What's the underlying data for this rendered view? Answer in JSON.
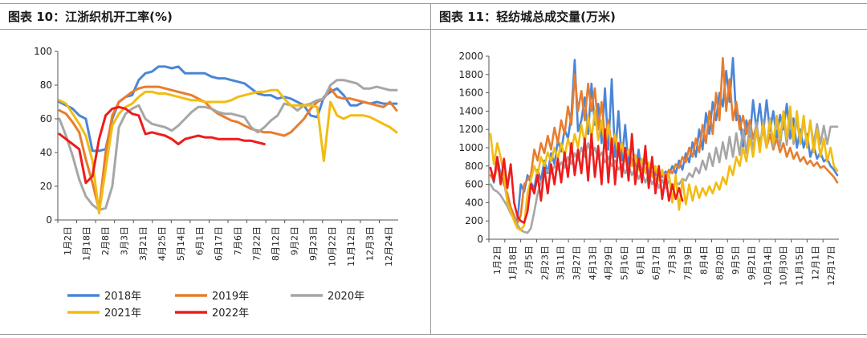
{
  "colors": {
    "s2018": "#4a86d8",
    "s2019": "#e77d2e",
    "s2020": "#a6a6a6",
    "s2021": "#f2bc12",
    "s2022": "#ee1c1c"
  },
  "chart_data": [
    {
      "type": "line",
      "title": "图表 10：江浙织机开工率(%)",
      "ylim": [
        0,
        100
      ],
      "yticks": [
        "0",
        "20",
        "40",
        "60",
        "80",
        "100"
      ],
      "x_tick_labels": [
        "1月2日",
        "1月18日",
        "2月8日",
        "3月3日",
        "3月21日",
        "4月25日",
        "5月14日",
        "6月1日",
        "6月17日",
        "7月6日",
        "7月22日",
        "8月12日",
        "9月2日",
        "9月23日",
        "10月22日",
        "11月12日",
        "12月3日",
        "12月24日"
      ],
      "n_points": 52,
      "grid": false,
      "legend": "bottom",
      "series": [
        {
          "name": "2018年",
          "color_key": "s2018",
          "values": [
            70,
            68,
            66,
            62,
            60,
            41,
            41,
            42,
            60,
            70,
            73,
            74,
            83,
            87,
            88,
            91,
            91,
            90,
            91,
            87,
            87,
            87,
            87,
            85,
            84,
            84,
            83,
            82,
            81,
            78,
            75,
            74,
            74,
            72,
            73,
            72,
            70,
            68,
            62,
            61,
            73,
            76,
            78,
            74,
            68,
            68,
            70,
            69,
            70,
            69,
            69,
            69
          ]
        },
        {
          "name": "2019年",
          "color_key": "s2019",
          "values": [
            65,
            63,
            58,
            52,
            36,
            22,
            6,
            40,
            62,
            70,
            73,
            76,
            78,
            79,
            79,
            79,
            78,
            77,
            76,
            75,
            74,
            72,
            70,
            66,
            63,
            61,
            59,
            58,
            56,
            54,
            53,
            52,
            52,
            51,
            50,
            52,
            56,
            60,
            66,
            70,
            72,
            78,
            73,
            72,
            72,
            71,
            70,
            69,
            68,
            67,
            70,
            65
          ]
        },
        {
          "name": "2020年",
          "color_key": "s2020",
          "values": [
            60,
            50,
            38,
            24,
            14,
            9,
            6,
            7,
            20,
            55,
            63,
            66,
            68,
            60,
            57,
            56,
            55,
            53,
            56,
            60,
            64,
            67,
            67,
            66,
            64,
            63,
            63,
            62,
            61,
            55,
            52,
            55,
            59,
            62,
            69,
            68,
            65,
            68,
            69,
            71,
            72,
            80,
            83,
            83,
            82,
            81,
            78,
            78,
            79,
            78,
            77,
            77
          ]
        },
        {
          "name": "2021年",
          "color_key": "s2021",
          "values": [
            71,
            69,
            63,
            57,
            50,
            35,
            4,
            30,
            56,
            63,
            67,
            69,
            73,
            76,
            76,
            75,
            75,
            74,
            73,
            72,
            71,
            71,
            70,
            70,
            70,
            70,
            71,
            73,
            74,
            75,
            76,
            76,
            77,
            77,
            72,
            68,
            68,
            68,
            68,
            67,
            35,
            70,
            62,
            60,
            62,
            62,
            62,
            61,
            59,
            57,
            55,
            52
          ]
        },
        {
          "name": "2022年",
          "color_key": "s2022",
          "values": [
            51,
            48,
            45,
            42,
            22,
            26,
            48,
            62,
            66,
            67,
            66,
            63,
            62,
            51,
            52,
            51,
            50,
            48,
            45,
            48,
            49,
            50,
            49,
            49,
            48,
            48,
            48,
            48,
            47,
            47,
            46,
            45
          ]
        }
      ]
    },
    {
      "type": "line",
      "title": "图表 11：轻纺城总成交量(万米)",
      "ylim": [
        0,
        2000
      ],
      "yticks": [
        "0",
        "200",
        "400",
        "600",
        "800",
        "1000",
        "1200",
        "1400",
        "1600",
        "1800",
        "2000"
      ],
      "x_tick_labels": [
        "1月2日",
        "1月18日",
        "2月5日",
        "2月23日",
        "3月11日",
        "3月27日",
        "4月13日",
        "4月29日",
        "5月16日",
        "6月1日",
        "6月17日",
        "7月3日",
        "7月19日",
        "8月4日",
        "8月20日",
        "9月5日",
        "9月21日",
        "10月14日",
        "10月30日",
        "11月15日",
        "12月1日",
        "12月17日"
      ],
      "n_points": 104,
      "grid": false,
      "legend": "none",
      "series": [
        {
          "name": "",
          "color_key": "s2018",
          "values": [
            780,
            620,
            900,
            700,
            640,
            420,
            300,
            240,
            200,
            600,
            520,
            700,
            620,
            560,
            760,
            640,
            860,
            720,
            940,
            820,
            1080,
            960,
            1200,
            1100,
            1350,
            1960,
            1180,
            1300,
            1550,
            1150,
            1700,
            1250,
            1480,
            1050,
            1650,
            980,
            1750,
            900,
            1400,
            860,
            1250,
            780,
            1100,
            740,
            980,
            700,
            880,
            720,
            820,
            700,
            760,
            680,
            740,
            700,
            800,
            720,
            860,
            760,
            940,
            840,
            1060,
            900,
            1200,
            980,
            1380,
            1150,
            1500,
            1300,
            1600,
            1450,
            1840,
            1500,
            1980,
            1300,
            1350,
            1000,
            1300,
            1100,
            1520,
            1200,
            1480,
            1150,
            1520,
            1180,
            1400,
            1100,
            1360,
            1200,
            1480,
            1100,
            1320,
            1000,
            1200,
            1000,
            1150,
            900,
            1020,
            880,
            950,
            850,
            880,
            800,
            760,
            700
          ]
        },
        {
          "name": "",
          "color_key": "s2019",
          "values": [
            700,
            640,
            800,
            700,
            600,
            500,
            350,
            260,
            180,
            260,
            600,
            650,
            700,
            980,
            860,
            1050,
            940,
            1130,
            980,
            1220,
            1050,
            1300,
            1150,
            1450,
            1250,
            1800,
            1400,
            1620,
            1300,
            1700,
            1400,
            1650,
            1200,
            1500,
            1100,
            1300,
            1000,
            1150,
            950,
            1050,
            900,
            980,
            850,
            900,
            800,
            850,
            760,
            800,
            720,
            760,
            700,
            740,
            680,
            760,
            720,
            820,
            780,
            900,
            840,
            1000,
            900,
            1100,
            950,
            1250,
            1050,
            1400,
            1150,
            1600,
            1300,
            1980,
            1400,
            1750,
            1300,
            1500,
            1200,
            1350,
            1150,
            1300,
            1100,
            1250,
            1050,
            1200,
            1000,
            1150,
            980,
            1100,
            950,
            1050,
            900,
            1000,
            880,
            950,
            850,
            900,
            820,
            860,
            800,
            840,
            780,
            800,
            760,
            720,
            680,
            620
          ]
        },
        {
          "name": "",
          "color_key": "s2020",
          "values": [
            600,
            540,
            520,
            480,
            420,
            360,
            280,
            220,
            160,
            100,
            80,
            70,
            120,
            300,
            500,
            620,
            700,
            760,
            720,
            800,
            760,
            840,
            780,
            900,
            820,
            940,
            860,
            1000,
            900,
            1050,
            920,
            1000,
            880,
            950,
            840,
            900,
            800,
            860,
            760,
            820,
            720,
            800,
            700,
            780,
            660,
            740,
            620,
            700,
            600,
            680,
            560,
            650,
            560,
            640,
            580,
            620,
            600,
            660,
            640,
            720,
            680,
            780,
            720,
            860,
            760,
            940,
            800,
            1000,
            840,
            1060,
            880,
            1120,
            900,
            1160,
            920,
            1200,
            940,
            1240,
            960,
            1280,
            980,
            1300,
            1000,
            1320,
            1010,
            1330,
            1020,
            1340,
            1030,
            1340,
            1040,
            1320,
            1040,
            1300,
            1040,
            1280,
            1040,
            1260,
            1040,
            1240,
            1040,
            1230,
            1230,
            1230
          ]
        },
        {
          "name": "",
          "color_key": "s2021",
          "values": [
            1150,
            820,
            1050,
            900,
            700,
            400,
            300,
            200,
            120,
            100,
            150,
            500,
            650,
            800,
            700,
            900,
            800,
            950,
            850,
            1000,
            880,
            1050,
            900,
            1100,
            950,
            1150,
            1000,
            1250,
            1050,
            1350,
            1100,
            1400,
            1080,
            1300,
            1000,
            1250,
            950,
            1150,
            900,
            1050,
            850,
            980,
            800,
            920,
            760,
            880,
            720,
            840,
            680,
            800,
            640,
            760,
            600,
            720,
            400,
            700,
            320,
            650,
            380,
            600,
            420,
            580,
            450,
            560,
            480,
            580,
            500,
            620,
            540,
            680,
            600,
            800,
            700,
            900,
            800,
            1000,
            850,
            1100,
            900,
            1200,
            950,
            1250,
            1000,
            1300,
            1050,
            1350,
            1100,
            1400,
            1100,
            1450,
            1080,
            1400,
            1050,
            1350,
            1000,
            1300,
            950,
            1200,
            900,
            1100,
            850,
            1000,
            800,
            750
          ]
        },
        {
          "name": "",
          "color_key": "s2022",
          "values": [
            780,
            640,
            900,
            600,
            880,
            560,
            820,
            400,
            250,
            200,
            180,
            300,
            600,
            500,
            700,
            420,
            780,
            500,
            820,
            600,
            880,
            620,
            950,
            680,
            1050,
            700,
            980,
            720,
            1100,
            640,
            1150,
            680,
            1020,
            600,
            1200,
            620,
            1100,
            600,
            1050,
            680,
            1000,
            640,
            1150,
            600,
            880,
            620,
            1020,
            560,
            900,
            500,
            800,
            440,
            700,
            420,
            600,
            440,
            560,
            420
          ]
        }
      ]
    }
  ]
}
